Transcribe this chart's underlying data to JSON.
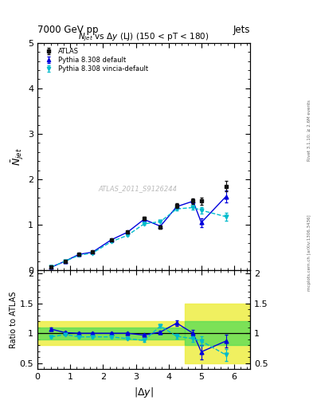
{
  "title_top": "7000 GeV pp",
  "title_top_right": "Jets",
  "plot_title": "$N_{jet}$ vs $\\Delta y$ (LJ) (150 < pT < 180)",
  "watermark": "ATLAS_2011_S9126244",
  "right_label_top": "Rivet 3.1.10; ≥ 2.6M events",
  "right_label_bot": "mcplots.cern.ch [arXiv:1306.3436]",
  "ylabel_main": "$\\bar{N}_{jet}$",
  "ylabel_ratio": "Ratio to ATLAS",
  "xlabel": "$|\\Delta y|$",
  "xlim": [
    0,
    6.5
  ],
  "ylim_main": [
    0,
    5
  ],
  "ylim_ratio": [
    0.4,
    2.05
  ],
  "yticks_main": [
    0,
    1,
    2,
    3,
    4,
    5
  ],
  "yticks_ratio": [
    0.5,
    1.0,
    1.5,
    2.0
  ],
  "xticks": [
    0,
    1,
    2,
    3,
    4,
    5,
    6
  ],
  "atlas_x": [
    0.42,
    0.84,
    1.26,
    1.68,
    2.25,
    2.75,
    3.25,
    3.75,
    4.25,
    4.75,
    5.0,
    5.75
  ],
  "atlas_y": [
    0.07,
    0.2,
    0.35,
    0.4,
    0.67,
    0.84,
    1.15,
    0.95,
    1.42,
    1.52,
    1.52,
    1.85
  ],
  "atlas_yerr": [
    0.01,
    0.01,
    0.015,
    0.015,
    0.025,
    0.025,
    0.03,
    0.03,
    0.05,
    0.06,
    0.08,
    0.12
  ],
  "py_def_x": [
    0.42,
    0.84,
    1.26,
    1.68,
    2.25,
    2.75,
    3.25,
    3.75,
    4.25,
    4.75,
    5.0,
    5.75
  ],
  "py_def_y": [
    0.07,
    0.2,
    0.35,
    0.4,
    0.67,
    0.84,
    1.12,
    0.97,
    1.4,
    1.52,
    1.05,
    1.62
  ],
  "py_def_yerr": [
    0.004,
    0.004,
    0.005,
    0.005,
    0.01,
    0.01,
    0.015,
    0.015,
    0.035,
    0.05,
    0.1,
    0.13
  ],
  "py_vin_x": [
    0.42,
    0.84,
    1.26,
    1.68,
    2.25,
    2.75,
    3.25,
    3.75,
    4.25,
    4.75,
    5.0,
    5.75
  ],
  "py_vin_y": [
    0.07,
    0.2,
    0.33,
    0.38,
    0.63,
    0.77,
    1.02,
    1.07,
    1.35,
    1.38,
    1.32,
    1.18
  ],
  "py_vin_yerr": [
    0.004,
    0.004,
    0.005,
    0.005,
    0.01,
    0.01,
    0.012,
    0.015,
    0.035,
    0.05,
    0.07,
    0.09
  ],
  "ratio_def_x": [
    0.42,
    0.84,
    1.26,
    1.68,
    2.25,
    2.75,
    3.25,
    3.75,
    4.25,
    4.75,
    5.0,
    5.75
  ],
  "ratio_def_y": [
    1.07,
    1.01,
    1.0,
    1.0,
    1.0,
    1.0,
    0.97,
    1.02,
    1.17,
    1.0,
    0.69,
    0.87
  ],
  "ratio_def_yerr": [
    0.025,
    0.02,
    0.02,
    0.02,
    0.02,
    0.02,
    0.025,
    0.025,
    0.05,
    0.055,
    0.12,
    0.11
  ],
  "ratio_vin_x": [
    0.42,
    0.84,
    1.26,
    1.68,
    2.25,
    2.75,
    3.25,
    3.75,
    4.25,
    4.75,
    5.0,
    5.75
  ],
  "ratio_vin_y": [
    0.94,
    0.98,
    0.94,
    0.94,
    0.94,
    0.91,
    0.88,
    1.12,
    0.95,
    0.91,
    0.87,
    0.64
  ],
  "ratio_vin_yerr": [
    0.02,
    0.02,
    0.02,
    0.02,
    0.02,
    0.02,
    0.022,
    0.025,
    0.045,
    0.05,
    0.08,
    0.1
  ],
  "color_atlas": "#111111",
  "color_def": "#0000dd",
  "color_vin": "#00bbcc",
  "color_green": "#55dd55",
  "color_yellow": "#eeee44",
  "background_color": "#ffffff"
}
